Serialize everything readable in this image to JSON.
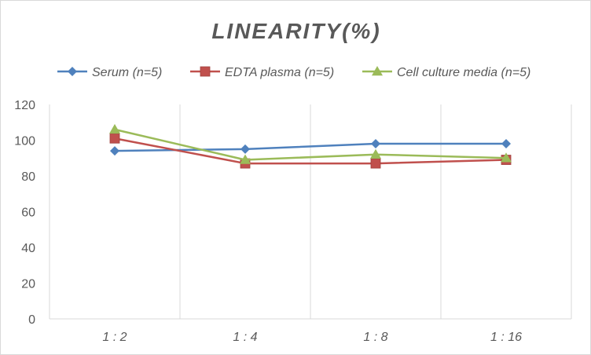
{
  "chart_data": {
    "type": "line",
    "title": "LINEARITY(%)",
    "categories": [
      "1:2",
      "1:4",
      "1:8",
      "1:16"
    ],
    "series": [
      {
        "name": "Serum (n=5)",
        "values": [
          94,
          95,
          98,
          98
        ],
        "color": "#4f81bd",
        "marker": "diamond"
      },
      {
        "name": "EDTA plasma (n=5)",
        "values": [
          101,
          87,
          87,
          89
        ],
        "color": "#c0504d",
        "marker": "square"
      },
      {
        "name": "Cell culture media (n=5)",
        "values": [
          106,
          89,
          92,
          90
        ],
        "color": "#9bbb59",
        "marker": "triangle"
      }
    ],
    "yticks": [
      0,
      20,
      40,
      60,
      80,
      100,
      120
    ],
    "ylim": [
      0,
      120
    ],
    "xlabel": "",
    "ylabel": "",
    "grid": "vertical",
    "legend_position": "top"
  }
}
